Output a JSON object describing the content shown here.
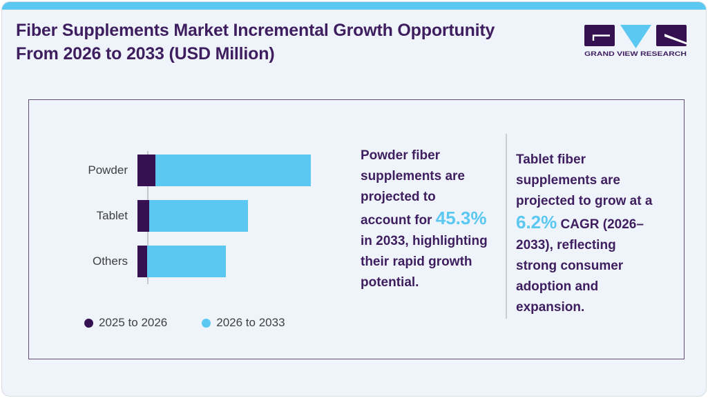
{
  "header": {
    "title_line1": "Fiber Supplements Market Incremental Growth Opportunity",
    "title_line2": "From 2026 to 2033 (USD Million)",
    "brand_name": "GRAND VIEW RESEARCH"
  },
  "colors": {
    "accent_blue": "#5bc8f1",
    "brand_purple": "#351151",
    "title_purple": "#3e1e5f",
    "label_gray": "#3f4046",
    "background": "#eef4fa",
    "card_border": "#5e4b76",
    "divider_gray": "#c8cdd3"
  },
  "chart_data": {
    "type": "bar",
    "orientation": "horizontal",
    "stacked": true,
    "title": "Fiber Supplements Market Incremental Growth Opportunity From 2026 to 2033 (USD Million)",
    "categories": [
      "Powder",
      "Tablet",
      "Others"
    ],
    "series": [
      {
        "name": "2025 to 2026",
        "color": "#351151",
        "values": [
          26,
          17,
          14
        ]
      },
      {
        "name": "2026 to 2033",
        "color": "#5bc8f1",
        "values": [
          225,
          143,
          114
        ]
      }
    ],
    "value_axis_visible": false,
    "units_note": "relative bar lengths; no numeric axis shown in figure",
    "xlim": [
      0,
      260
    ],
    "legend_position": "bottom",
    "grid": false
  },
  "insights": {
    "powder": {
      "pre": "Powder fiber supplements are projected to account for ",
      "highlight": "45.3%",
      "post": " in 2033, highlighting their rapid growth potential."
    },
    "tablet": {
      "pre": "Tablet fiber supplements are projected to grow at a ",
      "highlight": "6.2%",
      "post": " CAGR (2026–2033), reflecting strong consumer adoption and expansion."
    }
  }
}
